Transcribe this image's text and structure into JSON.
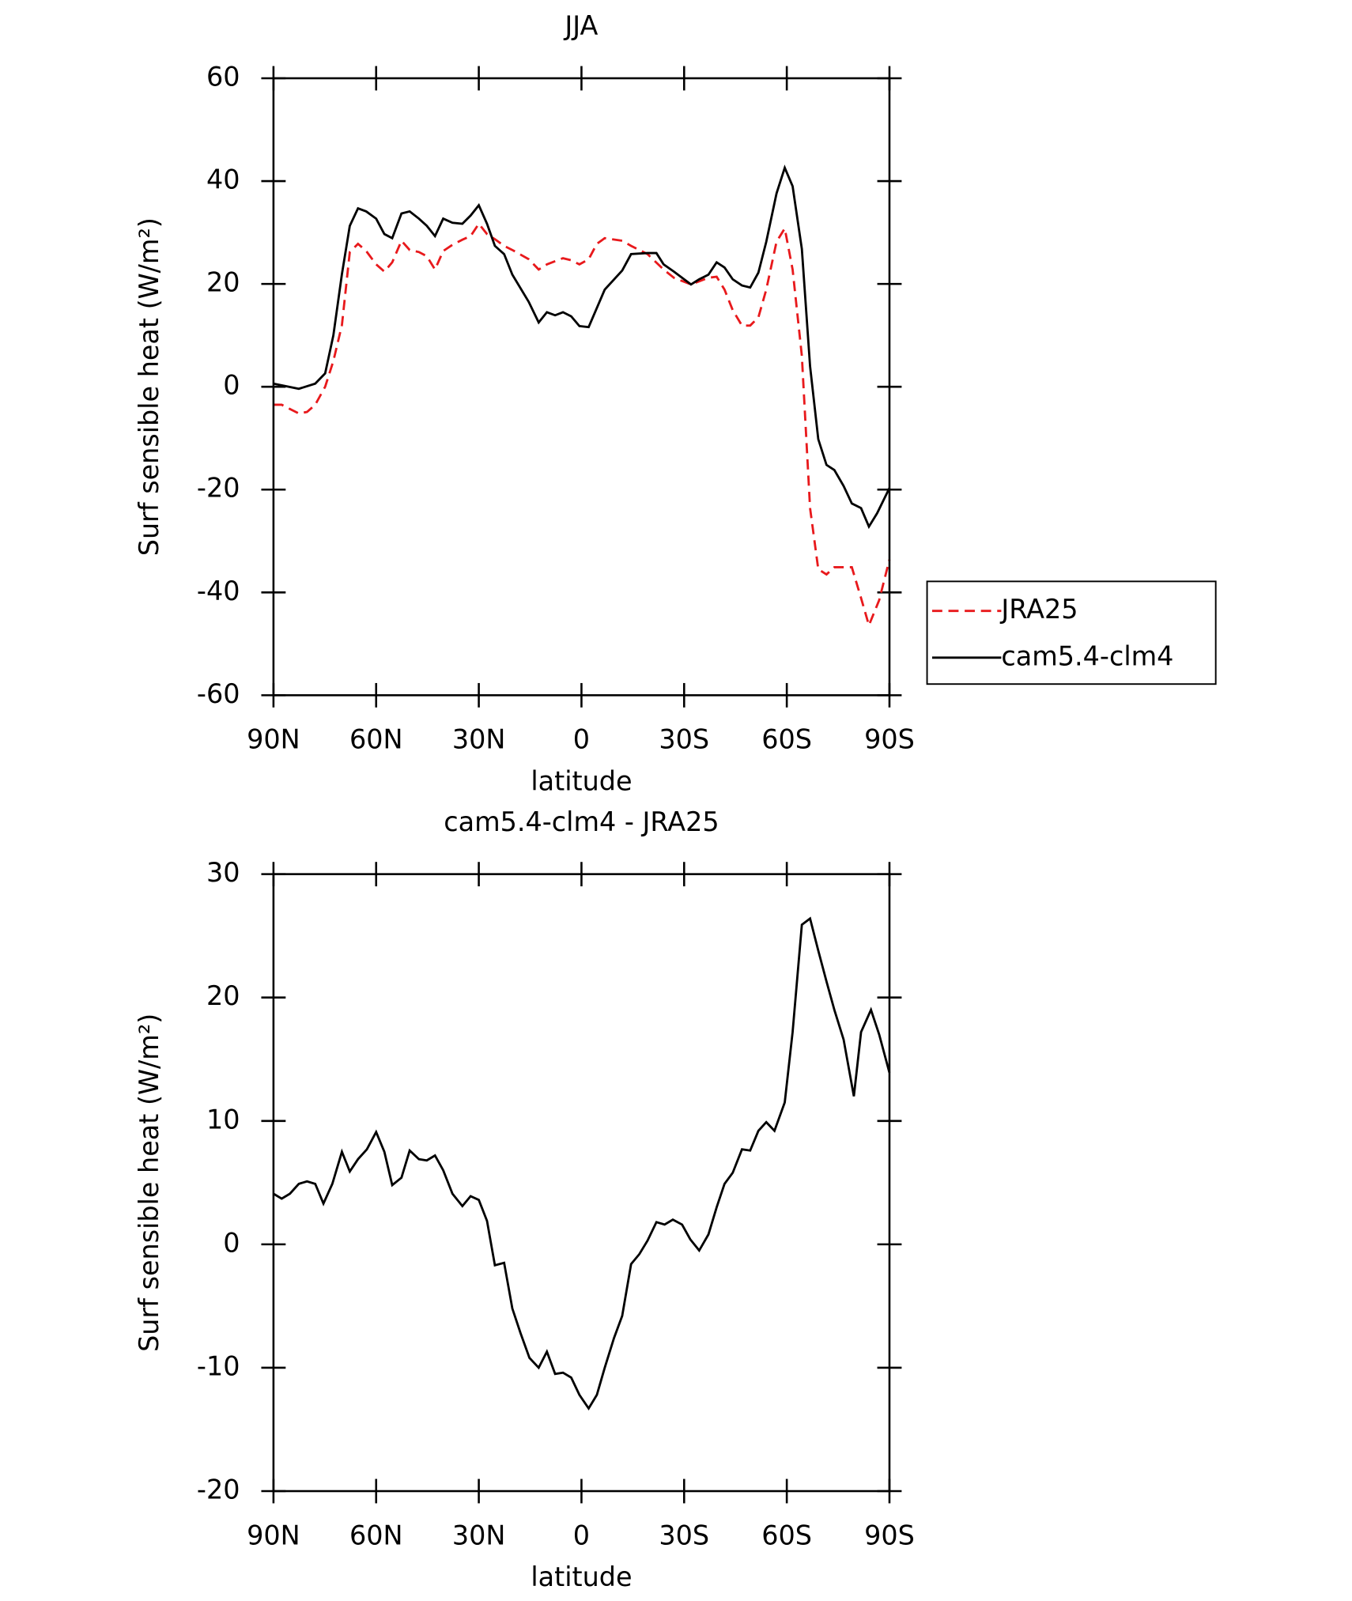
{
  "chart_data": [
    {
      "type": "line",
      "title": "JJA",
      "xlabel": "latitude",
      "ylabel": "Surf sensible heat (W/m²)",
      "legend": "right",
      "xlim": [
        90,
        -90
      ],
      "xticks": [
        {
          "value": 90,
          "label": "90N"
        },
        {
          "value": 60,
          "label": "60N"
        },
        {
          "value": 30,
          "label": "30N"
        },
        0,
        {
          "value": -30,
          "label": "30S"
        },
        {
          "value": -60,
          "label": "60S"
        },
        {
          "value": -90,
          "label": "90S"
        }
      ],
      "ylim": [
        -60,
        60
      ],
      "yticks": [
        -60,
        -40,
        -20,
        0,
        20,
        40,
        60
      ],
      "series": [
        {
          "name": "JRA25",
          "color": "#e8191c",
          "linestyle": "dashed",
          "x": [
            90,
            87.6,
            82.6,
            80.2,
            77.8,
            74.9,
            72.5,
            70,
            67.7,
            65.3,
            62.9,
            60,
            57.6,
            55.3,
            52.6,
            50.2,
            47.5,
            45.2,
            42.8,
            40.4,
            37.7,
            34.8,
            32.4,
            30,
            27.6,
            25.3,
            22.6,
            20.2,
            15.4,
            12.5,
            10.1,
            5.4,
            3,
            0.6,
            -2.1,
            -4.5,
            -6.8,
            -11.9,
            -14.5,
            -19.3,
            -24,
            -27,
            -32,
            -37.1,
            -39.5,
            -41.8,
            -44.2,
            -46.9,
            -49.3,
            -51.7,
            -54,
            -57,
            -59.4,
            -61.7,
            -64.4,
            -66.8,
            -69.2,
            -71.6,
            -73.9,
            -79,
            -81.7,
            -84,
            -87,
            -90
          ],
          "values": [
            -3.5,
            -3.5,
            -5.2,
            -4.9,
            -3.5,
            0,
            5,
            12,
            26.2,
            27.8,
            26.4,
            23.8,
            22.4,
            24.2,
            28.4,
            26.6,
            26.2,
            25.4,
            22.8,
            26.4,
            27.6,
            28.6,
            29.3,
            31.7,
            29.7,
            28.7,
            27.4,
            26.6,
            24.8,
            22.8,
            23.8,
            25,
            24.6,
            23.8,
            24.8,
            27.8,
            28.9,
            28.4,
            27.4,
            25.8,
            22.8,
            21.2,
            19.9,
            21.2,
            21.4,
            18.9,
            14.9,
            11.9,
            11.9,
            13.5,
            18.9,
            28.2,
            30.8,
            22.8,
            6,
            -23.6,
            -35.5,
            -36.5,
            -35.1,
            -35.1,
            -41.1,
            -46.4,
            -41.5,
            -33.6
          ]
        },
        {
          "name": "cam5.4-clm4",
          "color": "#000000",
          "linestyle": "solid",
          "x": [
            90,
            82.6,
            77.8,
            74.9,
            72.5,
            70,
            67.7,
            65.3,
            62.9,
            60,
            57.6,
            55.3,
            52.6,
            50.2,
            47.5,
            45.2,
            42.8,
            40.4,
            37.7,
            34.8,
            32.4,
            30,
            27.6,
            25.3,
            22.6,
            20.2,
            15.4,
            12.5,
            10.1,
            7.7,
            5.4,
            3,
            0.6,
            -2.1,
            -6.8,
            -11.9,
            -14.5,
            -19.3,
            -21.9,
            -24,
            -27,
            -32,
            -34.4,
            -37.1,
            -39.5,
            -41.8,
            -44.2,
            -46.9,
            -49.3,
            -51.7,
            -54,
            -57,
            -59.4,
            -61.7,
            -64.4,
            -66.8,
            -69.2,
            -71.6,
            -73.9,
            -76.6,
            -79,
            -81.7,
            -84,
            -86.4,
            -90
          ],
          "values": [
            0.6,
            -0.4,
            0.6,
            2.6,
            10,
            21.9,
            31.3,
            34.7,
            34.1,
            32.7,
            29.7,
            28.9,
            33.7,
            34.1,
            32.7,
            31.3,
            29.3,
            32.7,
            31.9,
            31.7,
            33.3,
            35.3,
            31.7,
            27.4,
            25.8,
            21.8,
            16.5,
            12.5,
            14.5,
            13.9,
            14.5,
            13.7,
            11.8,
            11.6,
            18.9,
            22.6,
            25.8,
            26,
            26,
            23.8,
            22.4,
            19.9,
            20.9,
            21.8,
            24.2,
            23.2,
            20.9,
            19.7,
            19.3,
            22.2,
            28.2,
            37.6,
            42.6,
            39,
            26.8,
            4,
            -10.2,
            -15.2,
            -16.2,
            -19.3,
            -22.7,
            -23.6,
            -27.2,
            -24.6,
            -19.7
          ]
        }
      ]
    },
    {
      "type": "line",
      "title": "cam5.4-clm4 - JRA25",
      "xlabel": "latitude",
      "ylabel": "Surf sensible heat (W/m²)",
      "xlim": [
        90,
        -90
      ],
      "xticks": [
        {
          "value": 90,
          "label": "90N"
        },
        {
          "value": 60,
          "label": "60N"
        },
        {
          "value": 30,
          "label": "30N"
        },
        0,
        {
          "value": -30,
          "label": "30S"
        },
        {
          "value": -60,
          "label": "60S"
        },
        {
          "value": -90,
          "label": "90S"
        }
      ],
      "ylim": [
        -20,
        30
      ],
      "yticks": [
        -20,
        -10,
        0,
        10,
        20,
        30
      ],
      "series": [
        {
          "color": "#000000",
          "linestyle": "solid",
          "x": [
            90,
            87.6,
            85.2,
            82.6,
            80.2,
            77.8,
            75.4,
            72.8,
            70,
            67.7,
            65.3,
            62.7,
            60,
            57.6,
            55.3,
            52.6,
            50.2,
            47.5,
            45.2,
            42.8,
            40.4,
            37.7,
            34.8,
            32.4,
            30,
            27.6,
            25.3,
            22.6,
            20.2,
            17.8,
            15.2,
            12.5,
            10.1,
            7.7,
            5.4,
            3,
            0.6,
            -2.1,
            -4.5,
            -6.8,
            -9.5,
            -11.9,
            -14.5,
            -16.9,
            -19.3,
            -21.9,
            -24.3,
            -26.7,
            -29.4,
            -31.8,
            -34.4,
            -37.1,
            -39.5,
            -41.8,
            -44.2,
            -46.9,
            -49.3,
            -51.7,
            -54,
            -56.4,
            -59.4,
            -61.7,
            -64.4,
            -66.8,
            -69.2,
            -71.6,
            -73.9,
            -76.6,
            -79.6,
            -81.7,
            -84.6,
            -87,
            -90
          ],
          "values": [
            4.1,
            3.7,
            4.1,
            4.9,
            5.1,
            4.9,
            3.3,
            4.9,
            7.5,
            5.9,
            6.9,
            7.7,
            9.1,
            7.5,
            4.8,
            5.4,
            7.6,
            6.9,
            6.8,
            7.2,
            6,
            4.1,
            3.1,
            3.9,
            3.6,
            1.9,
            -1.7,
            -1.5,
            -5.2,
            -7.2,
            -9.2,
            -10,
            -8.7,
            -10.5,
            -10.4,
            -10.8,
            -12.2,
            -13.3,
            -12.2,
            -10,
            -7.6,
            -5.8,
            -1.6,
            -0.8,
            0.3,
            1.8,
            1.6,
            2,
            1.6,
            0.4,
            -0.5,
            0.8,
            3,
            4.9,
            5.8,
            7.7,
            7.6,
            9.2,
            9.9,
            9.2,
            11.5,
            17.2,
            25.9,
            26.4,
            23.8,
            21.3,
            19,
            16.6,
            12,
            17.2,
            19,
            17,
            13.9
          ]
        }
      ]
    }
  ]
}
